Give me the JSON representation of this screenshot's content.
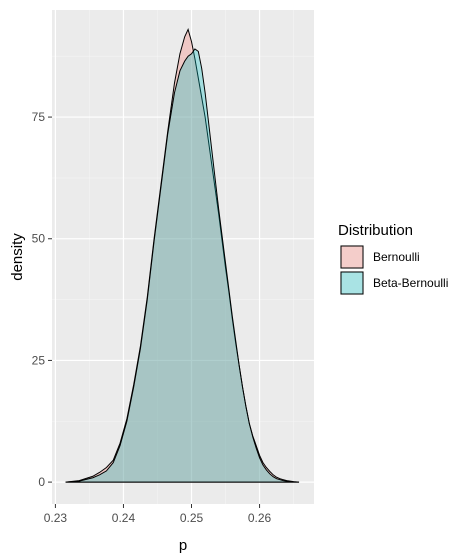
{
  "chart_data": {
    "type": "area",
    "title": "",
    "xlabel": "p",
    "ylabel": "density",
    "xlim": [
      0.2295,
      0.268
    ],
    "ylim": [
      -4.5,
      97
    ],
    "x_ticks": [
      0.23,
      0.24,
      0.25,
      0.26
    ],
    "x_tick_labels": [
      "0.23",
      "0.24",
      "0.25",
      "0.26"
    ],
    "y_ticks": [
      0,
      25,
      50,
      75
    ],
    "y_tick_labels": [
      "0",
      "25",
      "50",
      "75"
    ],
    "grid": true,
    "panel_background": "#ebebeb",
    "legend": {
      "title": "Distribution",
      "position": "right"
    },
    "series": [
      {
        "name": "Bernoulli",
        "color": "#f8766d",
        "fill_alpha": 0.3,
        "x": [
          0.2315,
          0.2335,
          0.2355,
          0.2365,
          0.2375,
          0.2385,
          0.2395,
          0.2405,
          0.2415,
          0.2425,
          0.2435,
          0.2445,
          0.2455,
          0.2465,
          0.2475,
          0.2483,
          0.249,
          0.2495,
          0.25,
          0.2505,
          0.251,
          0.2515,
          0.252,
          0.2525,
          0.253,
          0.2535,
          0.254,
          0.2545,
          0.255,
          0.2555,
          0.256,
          0.2565,
          0.257,
          0.2575,
          0.258,
          0.2585,
          0.259,
          0.2595,
          0.26,
          0.2605,
          0.261,
          0.2615,
          0.262,
          0.2625,
          0.263,
          0.2635,
          0.264,
          0.2645,
          0.265,
          0.2658
        ],
        "y": [
          0,
          0.3,
          1.2,
          2,
          3,
          4.5,
          8,
          13,
          20,
          28,
          38,
          50,
          61,
          72,
          82,
          88,
          91.5,
          93,
          90.5,
          87,
          83,
          79,
          75,
          70,
          65,
          60,
          55,
          49.5,
          44,
          39,
          33.5,
          28.5,
          24,
          19.5,
          15.5,
          12,
          9.5,
          7.5,
          5.5,
          4,
          3,
          2.2,
          1.5,
          1,
          0.7,
          0.5,
          0.3,
          0.2,
          0.1,
          0
        ]
      },
      {
        "name": "Beta-Bernoulli",
        "color": "#00bfc4",
        "fill_alpha": 0.3,
        "x": [
          0.2315,
          0.2335,
          0.2355,
          0.2365,
          0.2375,
          0.2385,
          0.2395,
          0.2405,
          0.2415,
          0.2425,
          0.2435,
          0.2445,
          0.2455,
          0.2465,
          0.2475,
          0.2483,
          0.249,
          0.2495,
          0.25,
          0.2505,
          0.251,
          0.2515,
          0.252,
          0.2525,
          0.253,
          0.2535,
          0.254,
          0.2545,
          0.255,
          0.2555,
          0.256,
          0.2565,
          0.257,
          0.2575,
          0.258,
          0.2585,
          0.259,
          0.2595,
          0.26,
          0.2605,
          0.261,
          0.2615,
          0.262,
          0.2625,
          0.263,
          0.2635,
          0.264,
          0.2645,
          0.265,
          0.2658
        ],
        "y": [
          0,
          0.2,
          0.9,
          1.5,
          2.3,
          4,
          7.5,
          12.5,
          19.5,
          27.5,
          37.5,
          49.5,
          60.5,
          71.5,
          80,
          84.5,
          86.5,
          87.5,
          88,
          89,
          88.5,
          85,
          80,
          74,
          68,
          62,
          56,
          50.5,
          45,
          39.5,
          34,
          29,
          24,
          19.5,
          15.5,
          12,
          9.3,
          7,
          5,
          3.5,
          2.5,
          1.7,
          1.1,
          0.7,
          0.5,
          0.3,
          0.2,
          0.1,
          0.05,
          0
        ]
      }
    ]
  }
}
